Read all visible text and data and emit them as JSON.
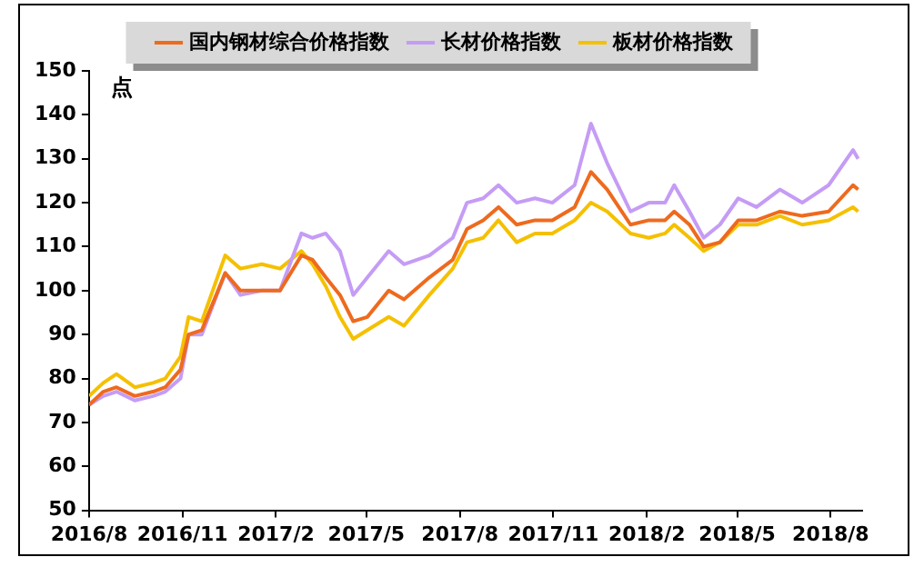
{
  "chart_data": {
    "type": "line",
    "ylabel": "点",
    "x": [
      "2016-08-01",
      "2016-08-15",
      "2016-08-28",
      "2016-09-15",
      "2016-10-03",
      "2016-10-15",
      "2016-10-30",
      "2016-11-07",
      "2016-11-20",
      "2016-12-13",
      "2016-12-28",
      "2017-01-18",
      "2017-02-05",
      "2017-02-26",
      "2017-03-09",
      "2017-03-22",
      "2017-04-05",
      "2017-04-18",
      "2017-05-02",
      "2017-05-23",
      "2017-06-07",
      "2017-07-02",
      "2017-07-25",
      "2017-08-08",
      "2017-08-24",
      "2017-09-08",
      "2017-09-26",
      "2017-10-14",
      "2017-10-31",
      "2017-11-22",
      "2017-12-08",
      "2017-12-24",
      "2018-01-16",
      "2018-02-03",
      "2018-02-19",
      "2018-02-28",
      "2018-03-15",
      "2018-03-29",
      "2018-04-14",
      "2018-05-02",
      "2018-05-20",
      "2018-06-12",
      "2018-07-04",
      "2018-07-30",
      "2018-08-23",
      "2018-08-28"
    ],
    "series": [
      {
        "name": "国内钢材综合价格指数",
        "color": "#ee6a1e",
        "values": [
          74,
          77,
          78,
          76,
          77,
          78,
          82,
          90,
          91,
          104,
          100,
          100,
          100,
          108,
          107,
          103,
          99,
          93,
          94,
          100,
          98,
          103,
          107,
          114,
          116,
          119,
          115,
          116,
          116,
          119,
          127,
          123,
          115,
          116,
          116,
          118,
          115,
          110,
          111,
          116,
          116,
          118,
          117,
          118,
          124,
          123
        ]
      },
      {
        "name": "长材价格指数",
        "color": "#c59cf5",
        "values": [
          74,
          76,
          77,
          75,
          76,
          77,
          80,
          90,
          90,
          104,
          99,
          100,
          100,
          113,
          112,
          113,
          109,
          99,
          103,
          109,
          106,
          108,
          112,
          120,
          121,
          124,
          120,
          121,
          120,
          124,
          138,
          129,
          118,
          120,
          120,
          124,
          118,
          112,
          115,
          121,
          119,
          123,
          120,
          124,
          132,
          130
        ]
      },
      {
        "name": "板材价格指数",
        "color": "#f5c000",
        "values": [
          76,
          79,
          81,
          78,
          79,
          80,
          85,
          94,
          93,
          108,
          105,
          106,
          105,
          109,
          106,
          101,
          94,
          89,
          91,
          94,
          92,
          99,
          105,
          111,
          112,
          116,
          111,
          113,
          113,
          116,
          120,
          118,
          113,
          112,
          113,
          115,
          112,
          109,
          111,
          115,
          115,
          117,
          115,
          116,
          119,
          118
        ]
      }
    ],
    "xlim": [
      "2016-08-01",
      "2018-09-01"
    ],
    "xticks": [
      {
        "value": "2016-08-01",
        "label": "2016/8"
      },
      {
        "value": "2016-11-01",
        "label": "2016/11"
      },
      {
        "value": "2017-02-01",
        "label": "2017/2"
      },
      {
        "value": "2017-05-01",
        "label": "2017/5"
      },
      {
        "value": "2017-08-01",
        "label": "2017/8"
      },
      {
        "value": "2017-11-01",
        "label": "2017/11"
      },
      {
        "value": "2018-02-01",
        "label": "2018/2"
      },
      {
        "value": "2018-05-01",
        "label": "2018/5"
      },
      {
        "value": "2018-08-01",
        "label": "2018/8"
      }
    ],
    "ylim": [
      50,
      150
    ],
    "yticks": [
      50,
      60,
      70,
      80,
      90,
      100,
      110,
      120,
      130,
      140,
      150
    ],
    "grid": false,
    "legend": "top",
    "marker": "none",
    "line_style": "solid"
  }
}
